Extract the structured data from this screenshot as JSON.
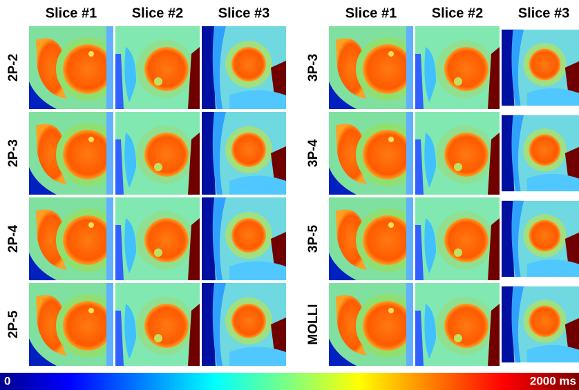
{
  "groups": [
    {
      "columns": [
        "Slice #1",
        "Slice #2",
        "Slice #3"
      ],
      "rows": [
        "2P-2",
        "2P-3",
        "2P-4",
        "2P-5"
      ]
    },
    {
      "columns": [
        "Slice #1",
        "Slice #2",
        "Slice #3"
      ],
      "rows": [
        "3P-3",
        "3P-4",
        "3P-5",
        "MOLLI"
      ]
    }
  ],
  "colorbar": {
    "min_label": "0",
    "max_label": "2000 ms"
  }
}
